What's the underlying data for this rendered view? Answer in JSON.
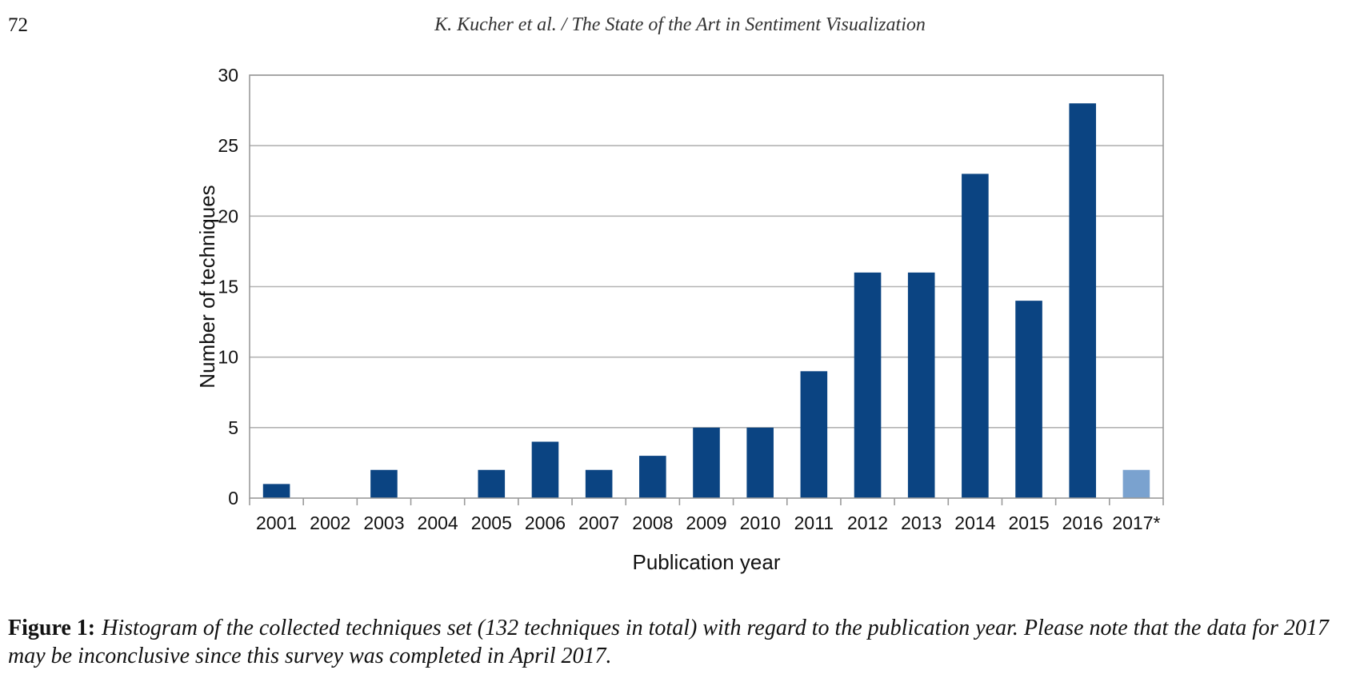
{
  "page": {
    "number": "72",
    "running_header": "K. Kucher et al. / The State of the Art in Sentiment Visualization"
  },
  "figure": {
    "label": "Figure 1:",
    "caption": "Histogram of the collected techniques set (132 techniques in total) with regard to the publication year. Please note that the data for 2017 may be inconclusive since this survey was completed in April 2017."
  },
  "chart_data": {
    "type": "bar",
    "xlabel": "Publication year",
    "ylabel": "Number of techniques",
    "categories": [
      "2001",
      "2002",
      "2003",
      "2004",
      "2005",
      "2006",
      "2007",
      "2008",
      "2009",
      "2010",
      "2011",
      "2012",
      "2013",
      "2014",
      "2015",
      "2016",
      "2017*"
    ],
    "values": [
      1,
      0,
      2,
      0,
      2,
      4,
      2,
      3,
      5,
      5,
      9,
      16,
      16,
      23,
      14,
      28,
      2
    ],
    "ylim": [
      0,
      30
    ],
    "yticks": [
      0,
      5,
      10,
      15,
      20,
      25,
      30
    ],
    "grid": true,
    "legend": "none",
    "colors": {
      "bar": "#0b4482",
      "bar_partial": "#7aa2cf",
      "grid": "#b3b3b3",
      "axis": "#9a9a9a"
    },
    "partial_categories": [
      "2017*"
    ]
  }
}
